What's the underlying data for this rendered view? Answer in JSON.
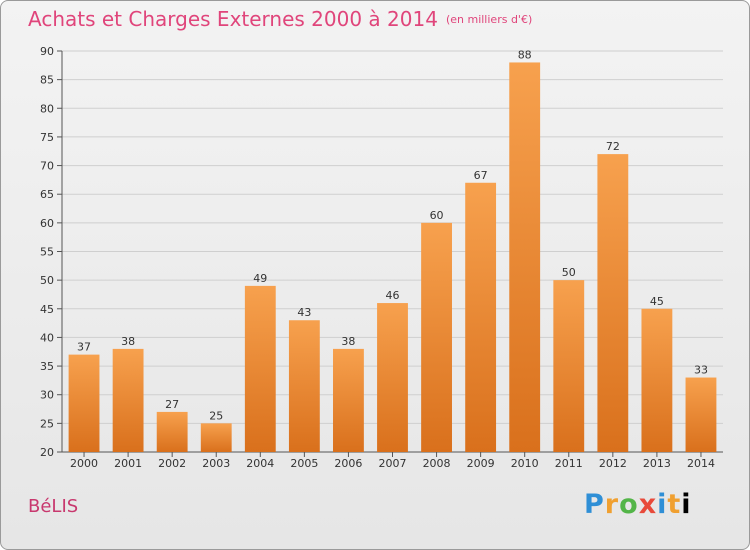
{
  "header": {
    "title": "Achats et Charges Externes 2000 à 2014",
    "unit": "(en milliers d'€)"
  },
  "footer": {
    "place": "BéLIS",
    "logo_letters": [
      "P",
      "r",
      "o",
      "x",
      "i",
      "t",
      "i"
    ]
  },
  "colors": {
    "bar_light": "#f7a14e",
    "bar_dark": "#d9701c",
    "title": "#e0457b",
    "place": "#c8386e",
    "grid": "#cfcfcf"
  },
  "chart_data": {
    "type": "bar",
    "title": "Achats et Charges Externes 2000 à 2014",
    "subtitle": "(en milliers d'€)",
    "xlabel": "",
    "ylabel": "",
    "categories": [
      "2000",
      "2001",
      "2002",
      "2003",
      "2004",
      "2005",
      "2006",
      "2007",
      "2008",
      "2009",
      "2010",
      "2011",
      "2012",
      "2013",
      "2014"
    ],
    "values": [
      37,
      38,
      27,
      25,
      49,
      43,
      38,
      46,
      60,
      67,
      88,
      50,
      72,
      45,
      33
    ],
    "ylim": [
      20,
      90
    ],
    "yticks": [
      20,
      25,
      30,
      35,
      40,
      45,
      50,
      55,
      60,
      65,
      70,
      75,
      80,
      85,
      90
    ],
    "grid": true,
    "legend": "none"
  }
}
